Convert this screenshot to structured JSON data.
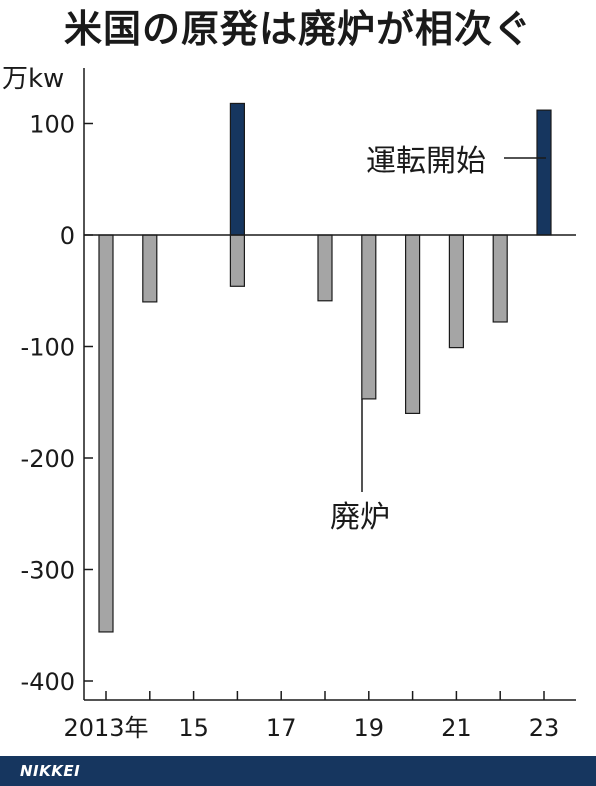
{
  "title": "米国の原発は廃炉が相次ぐ",
  "unit_label": "万kw",
  "footer": {
    "brand": "NIKKEI"
  },
  "colors": {
    "decommission": "#a5a5a5",
    "start": "#16365f",
    "footer_bg": "#16365f"
  },
  "chart_data": {
    "type": "bar",
    "title": "米国の原発は廃炉が相次ぐ",
    "ylabel": "万kw",
    "ylim": [
      -400,
      100
    ],
    "yticks": [
      100,
      0,
      -100,
      -200,
      -300,
      -400
    ],
    "ytick_labels": [
      "100",
      "0",
      "-100",
      "-200",
      "-300",
      "-400"
    ],
    "x_ticks": [
      2013,
      2014,
      2015,
      2016,
      2017,
      2018,
      2019,
      2020,
      2021,
      2022,
      2023
    ],
    "x_tick_labels": [
      "2013年",
      "15",
      "17",
      "19",
      "21",
      "23"
    ],
    "x_labeled_years": [
      2013,
      2015,
      2017,
      2019,
      2021,
      2023
    ],
    "series": [
      {
        "name": "廃炉",
        "color": "#a5a5a5",
        "points": [
          {
            "year": 2013,
            "value": -356
          },
          {
            "year": 2014,
            "value": -60
          },
          {
            "year": 2016,
            "value": -46
          },
          {
            "year": 2018,
            "value": -59
          },
          {
            "year": 2019,
            "value": -147
          },
          {
            "year": 2020,
            "value": -160
          },
          {
            "year": 2021,
            "value": -101
          },
          {
            "year": 2022,
            "value": -78
          }
        ]
      },
      {
        "name": "運転開始",
        "color": "#16365f",
        "points": [
          {
            "year": 2016,
            "value": 118
          },
          {
            "year": 2023,
            "value": 112
          }
        ]
      }
    ],
    "annotations": [
      "運転開始",
      "廃炉"
    ],
    "grid": false
  }
}
